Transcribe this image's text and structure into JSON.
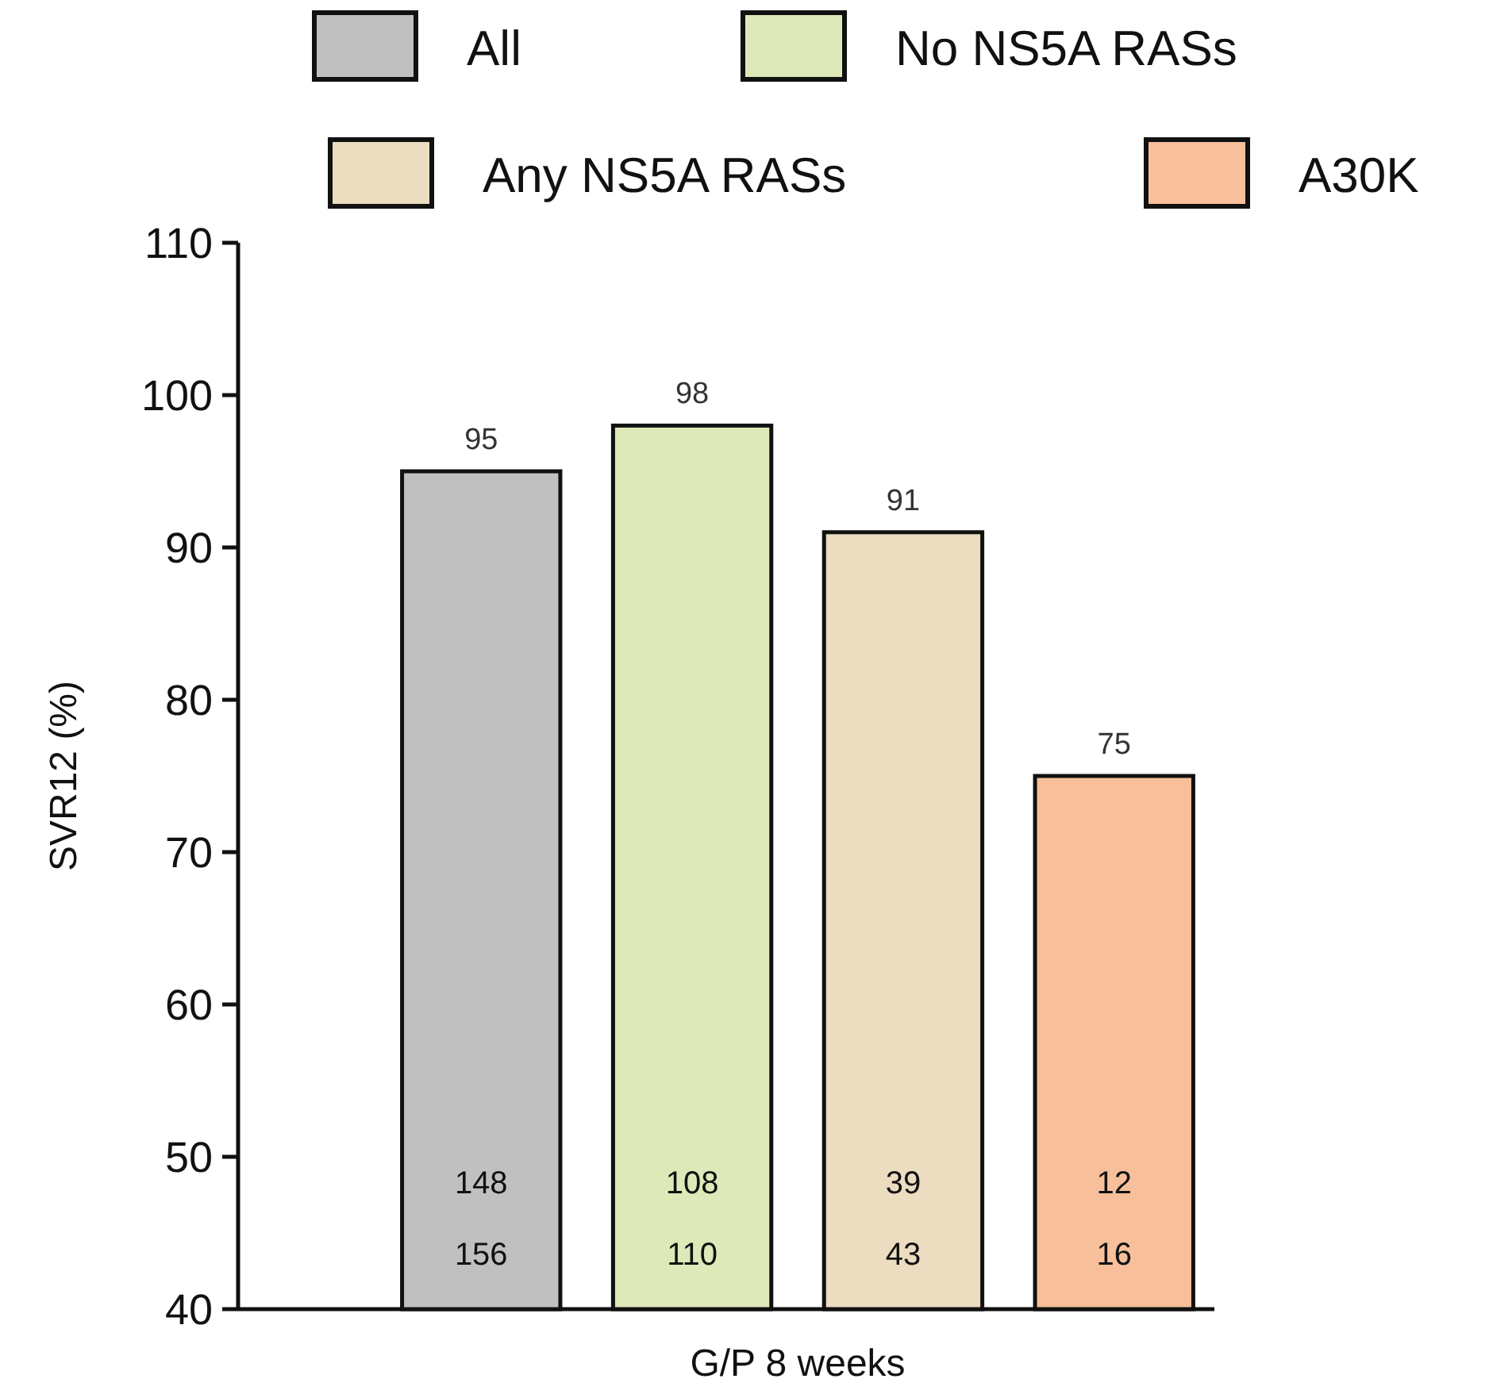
{
  "chart_data": {
    "type": "bar",
    "ylabel": "SVR12 (%)",
    "xlabel": "G/P 8 weeks",
    "categories": [
      null
    ],
    "series": [
      {
        "name": "All",
        "color": "#c0c0c0",
        "values": [
          95
        ]
      },
      {
        "name": "No NS5A RASs",
        "color": "#dde9b9",
        "values": [
          98
        ]
      },
      {
        "name": "Any NS5A RASs",
        "color": "#ecdcc0",
        "values": [
          91
        ]
      },
      {
        "name": "A30K",
        "color": "#f7c09a",
        "values": [
          75
        ]
      }
    ],
    "ylim": [
      40,
      110
    ],
    "yticks": [
      40,
      50,
      60,
      70,
      80,
      90,
      100,
      110
    ],
    "data_labels": true,
    "legend": "top",
    "grid": false,
    "annotations": [
      "148",
      "156",
      "108",
      "110",
      "39",
      "43",
      "12",
      "16"
    ]
  }
}
